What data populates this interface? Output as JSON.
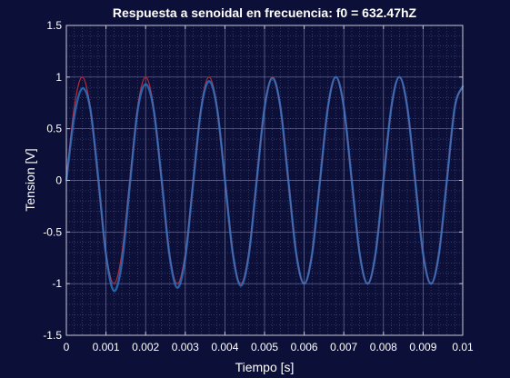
{
  "chart_data": {
    "type": "line",
    "title": "Respuesta a senoidal en frecuencia: f0 = 632.47hZ",
    "xlabel": "Tiempo [s]",
    "ylabel": "Tension [V]",
    "xlim": [
      0,
      0.01
    ],
    "ylim": [
      -1.5,
      1.5
    ],
    "xticks": [
      0,
      0.001,
      0.002,
      0.003,
      0.004,
      0.005,
      0.006,
      0.007,
      0.008,
      0.009,
      0.01
    ],
    "xtick_labels": [
      "0",
      "0.001",
      "0.002",
      "0.003",
      "0.004",
      "0.005",
      "0.006",
      "0.007",
      "0.008",
      "0.009",
      "0.01"
    ],
    "yticks": [
      -1.5,
      -1,
      -0.5,
      0,
      0.5,
      1,
      1.5
    ],
    "ytick_labels": [
      "-1.5",
      "-1",
      "-0.5",
      "0",
      "0.5",
      "1",
      "1.5"
    ],
    "grid": true,
    "minor_grid": true,
    "legend": false,
    "series": [
      {
        "color": "#b02a3a",
        "points": [
          [
            0,
            0
          ],
          [
            0.0002,
            0.71
          ],
          [
            0.0004,
            1.0
          ],
          [
            0.0006,
            0.71
          ],
          [
            0.0008,
            0.0
          ],
          [
            0.001,
            -0.71
          ],
          [
            0.0012,
            -1.0
          ],
          [
            0.0014,
            -0.71
          ],
          [
            0.0016,
            0.0
          ],
          [
            0.0018,
            0.71
          ],
          [
            0.002,
            1.0
          ],
          [
            0.0022,
            0.71
          ],
          [
            0.0024,
            0.0
          ],
          [
            0.0026,
            -0.71
          ],
          [
            0.0028,
            -1.0
          ],
          [
            0.003,
            -0.71
          ],
          [
            0.0032,
            0.0
          ],
          [
            0.0034,
            0.71
          ],
          [
            0.0036,
            1.0
          ],
          [
            0.0038,
            0.71
          ],
          [
            0.004,
            0.0
          ],
          [
            0.0042,
            -0.71
          ],
          [
            0.0044,
            -1.0
          ],
          [
            0.0046,
            -0.71
          ],
          [
            0.0048,
            0.0
          ],
          [
            0.005,
            0.71
          ],
          [
            0.0052,
            1.0
          ],
          [
            0.0054,
            0.71
          ],
          [
            0.0056,
            0.0
          ],
          [
            0.0058,
            -0.71
          ],
          [
            0.006,
            -1.0
          ],
          [
            0.0062,
            -0.71
          ],
          [
            0.0064,
            0.0
          ],
          [
            0.0066,
            0.71
          ],
          [
            0.0068,
            1.0
          ],
          [
            0.007,
            0.71
          ],
          [
            0.0072,
            0.0
          ],
          [
            0.0074,
            -0.71
          ],
          [
            0.0076,
            -1.0
          ],
          [
            0.0078,
            -0.71
          ],
          [
            0.008,
            0.0
          ],
          [
            0.0082,
            0.71
          ],
          [
            0.0084,
            1.0
          ],
          [
            0.0086,
            0.71
          ],
          [
            0.0088,
            0.0
          ],
          [
            0.009,
            -0.71
          ],
          [
            0.0092,
            -1.0
          ],
          [
            0.0094,
            -0.71
          ],
          [
            0.0096,
            0.0
          ],
          [
            0.0098,
            0.71
          ],
          [
            0.01,
            0.91
          ]
        ]
      },
      {
        "color": "#2f7fd4",
        "points": [
          [
            0,
            0
          ],
          [
            0.0002,
            0.62
          ],
          [
            0.0004,
            0.89
          ],
          [
            0.0006,
            0.7
          ],
          [
            0.0008,
            0.04
          ],
          [
            0.001,
            -0.72
          ],
          [
            0.0012,
            -1.07
          ],
          [
            0.0014,
            -0.8
          ],
          [
            0.0016,
            -0.05
          ],
          [
            0.0018,
            0.68
          ],
          [
            0.002,
            0.93
          ],
          [
            0.0022,
            0.69
          ],
          [
            0.0024,
            0.02
          ],
          [
            0.0026,
            -0.72
          ],
          [
            0.0028,
            -1.04
          ],
          [
            0.003,
            -0.75
          ],
          [
            0.0032,
            -0.02
          ],
          [
            0.0034,
            0.69
          ],
          [
            0.0036,
            0.96
          ],
          [
            0.0038,
            0.7
          ],
          [
            0.004,
            0.01
          ],
          [
            0.0042,
            -0.71
          ],
          [
            0.0044,
            -1.02
          ],
          [
            0.0046,
            -0.73
          ],
          [
            0.0048,
            -0.01
          ],
          [
            0.005,
            0.7
          ],
          [
            0.0052,
            0.99
          ],
          [
            0.0054,
            0.71
          ],
          [
            0.0056,
            0.0
          ],
          [
            0.0058,
            -0.71
          ],
          [
            0.006,
            -1.0
          ],
          [
            0.0062,
            -0.71
          ],
          [
            0.0064,
            0.0
          ],
          [
            0.0066,
            0.71
          ],
          [
            0.0068,
            1.0
          ],
          [
            0.007,
            0.71
          ],
          [
            0.0072,
            0.0
          ],
          [
            0.0074,
            -0.71
          ],
          [
            0.0076,
            -1.0
          ],
          [
            0.0078,
            -0.71
          ],
          [
            0.008,
            0.0
          ],
          [
            0.0082,
            0.71
          ],
          [
            0.0084,
            1.0
          ],
          [
            0.0086,
            0.71
          ],
          [
            0.0088,
            0.0
          ],
          [
            0.009,
            -0.71
          ],
          [
            0.0092,
            -1.0
          ],
          [
            0.0094,
            -0.71
          ],
          [
            0.0096,
            0.0
          ],
          [
            0.0098,
            0.71
          ],
          [
            0.01,
            0.91
          ]
        ]
      }
    ]
  },
  "colors": {
    "figure_background": "#0c0f38",
    "axes_background": "#0c0f38",
    "grid_major": "#8a8eb8",
    "grid_minor": "#4c5080",
    "axis_box": "#c8c8d8",
    "text": "#ffffff"
  }
}
